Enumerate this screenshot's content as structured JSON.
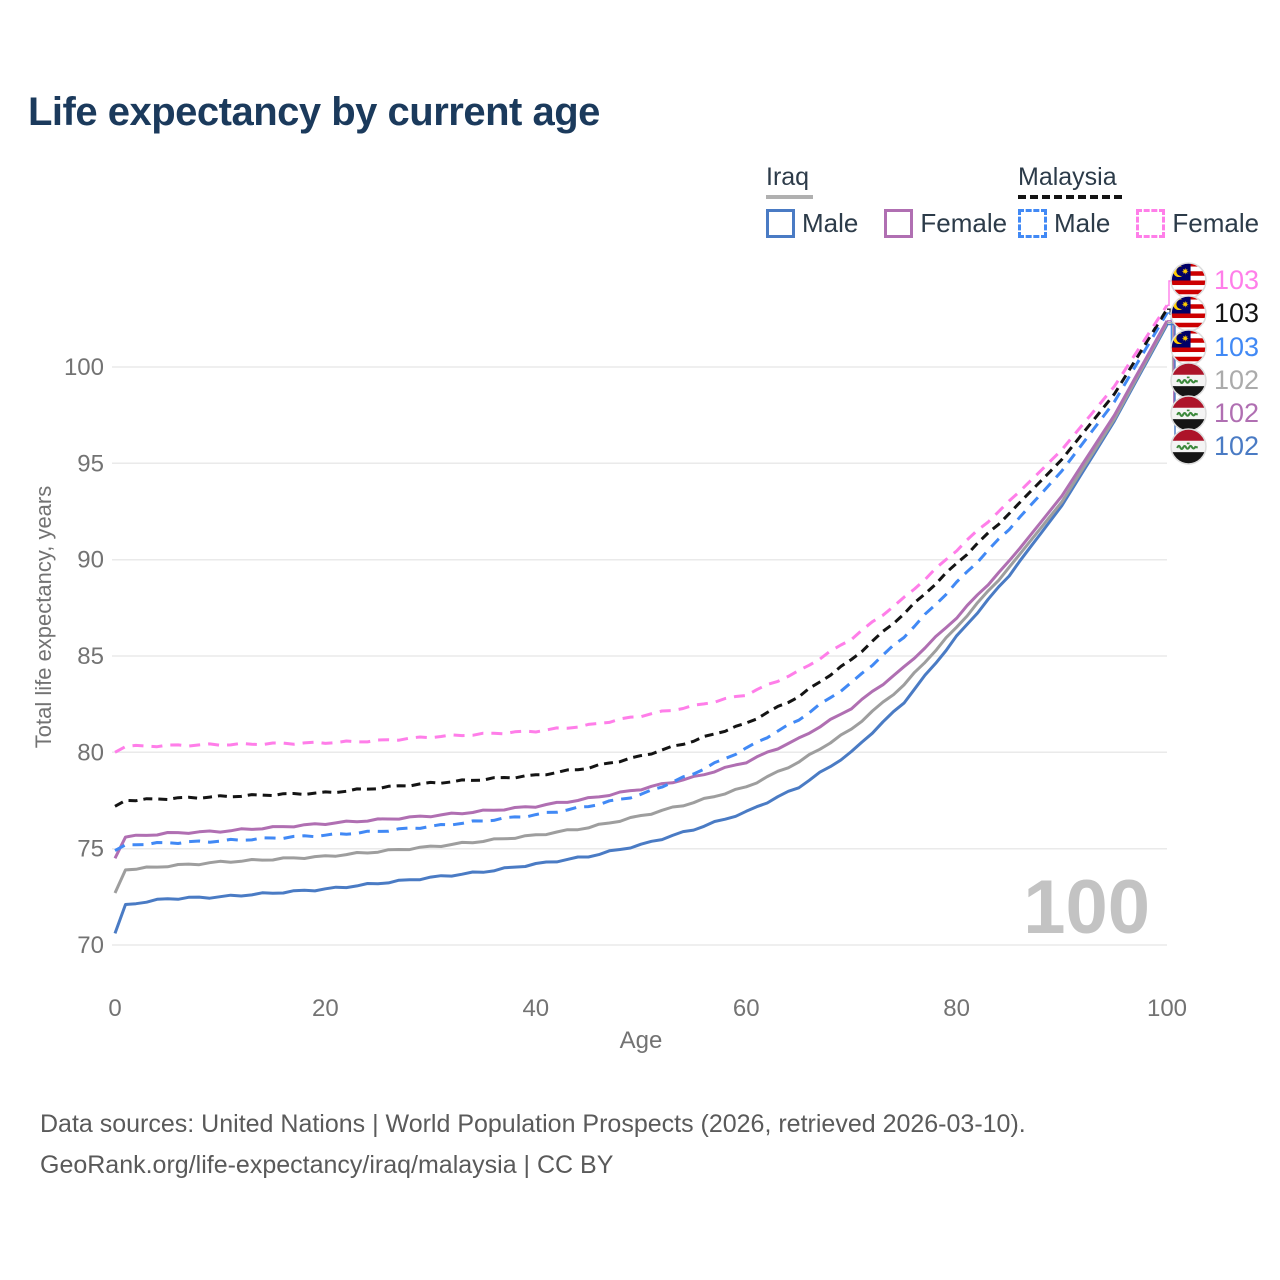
{
  "title": "Life expectancy by current age",
  "legend": {
    "groups": [
      {
        "label": "Iraq",
        "line_style": "solid",
        "underline_color": "#b0b0b0",
        "items": [
          {
            "label": "Male",
            "color": "#4a7bc4"
          },
          {
            "label": "Female",
            "color": "#b06fb2"
          }
        ]
      },
      {
        "label": "Malaysia",
        "line_style": "dashed",
        "underline_color": "#141414",
        "items": [
          {
            "label": "Male",
            "color": "#4189f5"
          },
          {
            "label": "Female",
            "color": "#ff7ee9"
          }
        ]
      }
    ]
  },
  "watermark_age": "100",
  "end_labels": [
    {
      "flag": "malaysia",
      "series": "malaysia_female",
      "value": "103",
      "color": "#ff7ee9"
    },
    {
      "flag": "malaysia",
      "series": "malaysia_total",
      "value": "103",
      "color": "#141414"
    },
    {
      "flag": "malaysia",
      "series": "malaysia_male",
      "value": "103",
      "color": "#4189f5"
    },
    {
      "flag": "iraq",
      "series": "iraq_total",
      "value": "102",
      "color": "#ababab"
    },
    {
      "flag": "iraq",
      "series": "iraq_female",
      "value": "102",
      "color": "#b06fb2"
    },
    {
      "flag": "iraq",
      "series": "iraq_male",
      "value": "102",
      "color": "#4a7bc4"
    }
  ],
  "chart_data": {
    "type": "line",
    "title": "Life expectancy by current age",
    "xlabel": "Age",
    "ylabel": "Total life expectancy, years",
    "xlim": [
      0,
      100
    ],
    "ylim": [
      70,
      103.5
    ],
    "xticks": [
      0,
      20,
      40,
      60,
      80,
      100
    ],
    "yticks": [
      70,
      75,
      80,
      85,
      90,
      95,
      100
    ],
    "grid": "horizontal",
    "x": [
      0,
      1,
      5,
      10,
      15,
      20,
      25,
      30,
      35,
      40,
      45,
      50,
      55,
      60,
      65,
      70,
      75,
      80,
      85,
      90,
      95,
      100
    ],
    "series": [
      {
        "key": "iraq_male",
        "name": "Iraq Male",
        "color": "#4a7bc4",
        "dash": false,
        "values": [
          70.6,
          72.1,
          72.4,
          72.5,
          72.7,
          72.9,
          73.2,
          73.5,
          73.8,
          74.2,
          74.6,
          75.2,
          76.0,
          76.9,
          78.2,
          80.0,
          82.6,
          86.0,
          89.2,
          92.8,
          97.2,
          102.2
        ]
      },
      {
        "key": "iraq_total",
        "name": "Iraq (both sexes)",
        "color": "#9e9e9e",
        "dash": false,
        "values": [
          72.7,
          73.9,
          74.1,
          74.3,
          74.45,
          74.6,
          74.85,
          75.1,
          75.4,
          75.7,
          76.1,
          76.7,
          77.4,
          78.2,
          79.5,
          81.2,
          83.5,
          86.5,
          89.6,
          93.0,
          97.3,
          102.3
        ]
      },
      {
        "key": "iraq_female",
        "name": "Iraq Female",
        "color": "#b06fb2",
        "dash": false,
        "values": [
          74.5,
          75.6,
          75.8,
          75.9,
          76.1,
          76.3,
          76.5,
          76.7,
          76.95,
          77.2,
          77.6,
          78.1,
          78.7,
          79.5,
          80.7,
          82.3,
          84.4,
          87.0,
          89.9,
          93.3,
          97.5,
          102.4
        ]
      },
      {
        "key": "malaysia_male",
        "name": "Malaysia Male",
        "color": "#4189f5",
        "dash": true,
        "values": [
          74.9,
          75.2,
          75.3,
          75.4,
          75.55,
          75.7,
          75.9,
          76.15,
          76.45,
          76.75,
          77.2,
          77.8,
          78.9,
          80.2,
          81.7,
          83.6,
          86.0,
          88.8,
          91.6,
          94.6,
          98.2,
          102.8
        ]
      },
      {
        "key": "malaysia_total",
        "name": "Malaysia (both sexes)",
        "color": "#141414",
        "dash": true,
        "values": [
          77.2,
          77.5,
          77.6,
          77.7,
          77.8,
          77.9,
          78.15,
          78.4,
          78.6,
          78.8,
          79.2,
          79.8,
          80.6,
          81.5,
          82.9,
          84.8,
          87.2,
          89.8,
          92.4,
          95.2,
          98.6,
          103.0
        ]
      },
      {
        "key": "malaysia_female",
        "name": "Malaysia Female",
        "color": "#ff7ee9",
        "dash": true,
        "values": [
          80.0,
          80.3,
          80.35,
          80.4,
          80.45,
          80.5,
          80.6,
          80.8,
          80.95,
          81.1,
          81.4,
          81.9,
          82.4,
          83.0,
          84.2,
          85.9,
          88.0,
          90.5,
          93.0,
          95.7,
          99.0,
          103.2
        ]
      }
    ]
  },
  "footer": {
    "line1": "Data sources: United Nations | World Population Prospects (2026, retrieved 2026-03-10).",
    "line2": "GeoRank.org/life-expectancy/iraq/malaysia | CC BY"
  }
}
